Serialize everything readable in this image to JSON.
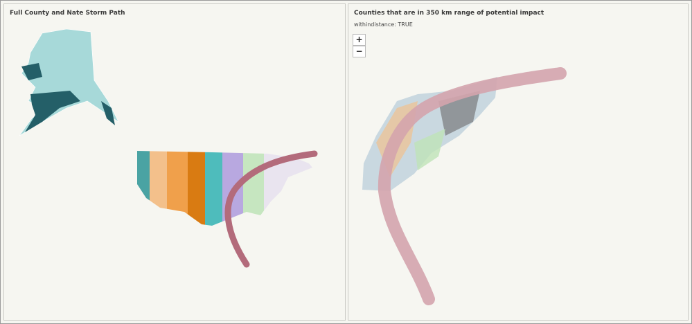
{
  "left_panel": {
    "title": "Full County and Nate Storm Path"
  },
  "right_panel": {
    "title": "Counties that are in 350 km range of potential impact",
    "filter": "withindistance: TRUE",
    "zoom_in": "+",
    "zoom_out": "−"
  }
}
